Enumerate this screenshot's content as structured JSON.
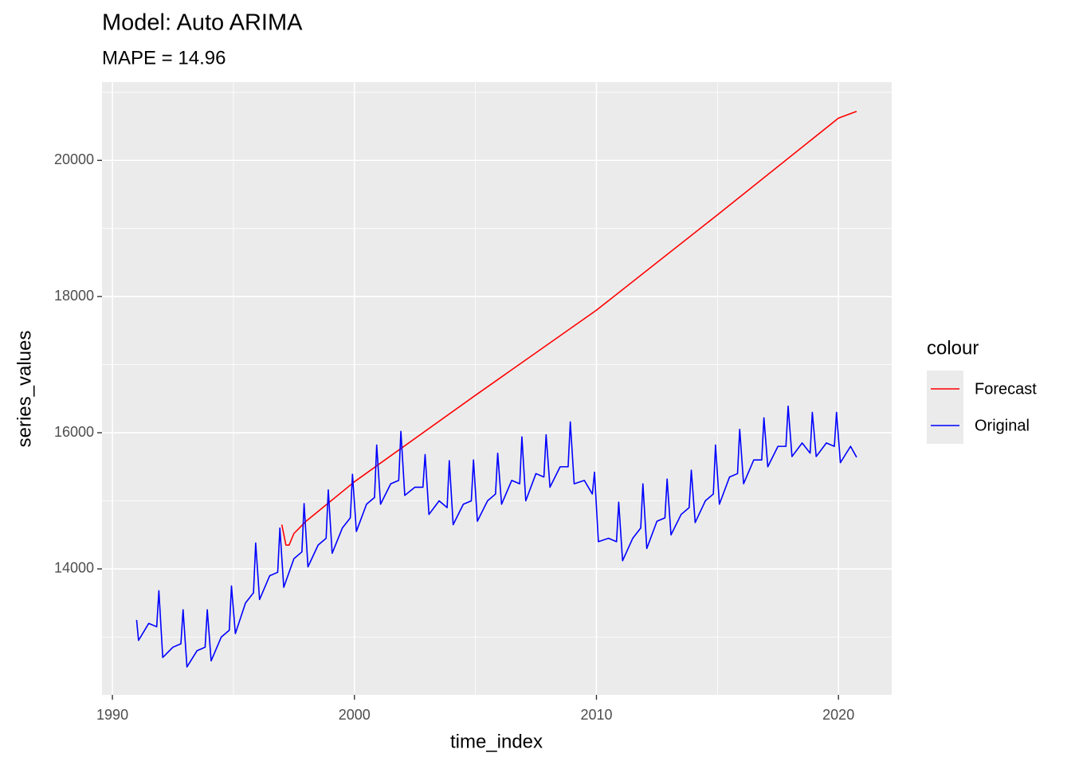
{
  "chart_data": {
    "type": "line",
    "title": "Model:  Auto ARIMA",
    "subtitle": "MAPE = 14.96",
    "x_label": "time_index",
    "y_label": "series_values",
    "legend_title": "colour",
    "legend_position": "right",
    "grid": true,
    "xlim": [
      1989.57,
      2022.2
    ],
    "ylim": [
      12150,
      21150
    ],
    "xticks": [
      1990,
      2000,
      2010,
      2020
    ],
    "yticks": [
      14000,
      16000,
      18000,
      20000
    ],
    "series": [
      {
        "name": "Forecast",
        "color": "#ff0000",
        "x": [
          1997.0,
          1997.17,
          1997.3,
          1997.5,
          1998.0,
          2000.0,
          2005.0,
          2010.0,
          2015.0,
          2020.0,
          2020.75
        ],
        "values": [
          14650,
          14350,
          14350,
          14520,
          14700,
          15280,
          16550,
          17800,
          19200,
          20620,
          20720
        ]
      },
      {
        "name": "Original",
        "color": "#0000ff",
        "x": [
          1991.0,
          1991.08,
          1991.5,
          1991.83,
          1991.92,
          1992.08,
          1992.5,
          1992.83,
          1992.92,
          1993.08,
          1993.5,
          1993.83,
          1993.92,
          1994.08,
          1994.5,
          1994.83,
          1994.92,
          1995.08,
          1995.5,
          1995.83,
          1995.92,
          1996.08,
          1996.5,
          1996.83,
          1996.92,
          1997.08,
          1997.5,
          1997.83,
          1997.92,
          1998.08,
          1998.5,
          1998.83,
          1998.92,
          1999.08,
          1999.5,
          1999.83,
          1999.92,
          2000.08,
          2000.5,
          2000.83,
          2000.92,
          2001.08,
          2001.5,
          2001.83,
          2001.92,
          2002.08,
          2002.5,
          2002.83,
          2002.92,
          2003.08,
          2003.5,
          2003.83,
          2003.92,
          2004.08,
          2004.5,
          2004.83,
          2004.92,
          2005.08,
          2005.5,
          2005.83,
          2005.92,
          2006.08,
          2006.5,
          2006.83,
          2006.92,
          2007.08,
          2007.5,
          2007.83,
          2007.92,
          2008.08,
          2008.5,
          2008.83,
          2008.92,
          2009.08,
          2009.5,
          2009.83,
          2009.92,
          2010.08,
          2010.5,
          2010.83,
          2010.92,
          2011.08,
          2011.5,
          2011.83,
          2011.92,
          2012.08,
          2012.5,
          2012.83,
          2012.92,
          2013.08,
          2013.5,
          2013.83,
          2013.92,
          2014.08,
          2014.5,
          2014.83,
          2014.92,
          2015.08,
          2015.5,
          2015.83,
          2015.92,
          2016.08,
          2016.5,
          2016.83,
          2016.92,
          2017.08,
          2017.5,
          2017.83,
          2017.92,
          2018.08,
          2018.5,
          2018.83,
          2018.92,
          2019.08,
          2019.5,
          2019.83,
          2019.92,
          2020.08,
          2020.5,
          2020.75
        ],
        "values": [
          13250,
          12950,
          13200,
          13150,
          13680,
          12700,
          12850,
          12900,
          13400,
          12560,
          12800,
          12850,
          13400,
          12650,
          13000,
          13100,
          13750,
          13050,
          13500,
          13650,
          14380,
          13550,
          13900,
          13950,
          14600,
          13730,
          14150,
          14250,
          14960,
          14030,
          14350,
          14450,
          15160,
          14230,
          14600,
          14750,
          15390,
          14550,
          14950,
          15050,
          15820,
          14950,
          15250,
          15300,
          16020,
          15080,
          15200,
          15200,
          15680,
          14800,
          15000,
          14900,
          15590,
          14650,
          14950,
          15000,
          15600,
          14700,
          15000,
          15100,
          15700,
          14950,
          15300,
          15250,
          15940,
          15000,
          15400,
          15350,
          15970,
          15200,
          15500,
          15500,
          16160,
          15250,
          15300,
          15100,
          15420,
          14400,
          14450,
          14400,
          14980,
          14120,
          14450,
          14600,
          15250,
          14300,
          14700,
          14750,
          15320,
          14500,
          14800,
          14900,
          15450,
          14680,
          15000,
          15100,
          15820,
          14950,
          15350,
          15400,
          16050,
          15250,
          15600,
          15600,
          16220,
          15500,
          15800,
          15800,
          16390,
          15650,
          15850,
          15700,
          16300,
          15650,
          15850,
          15800,
          16300,
          15560,
          15800,
          15640
        ]
      }
    ]
  }
}
